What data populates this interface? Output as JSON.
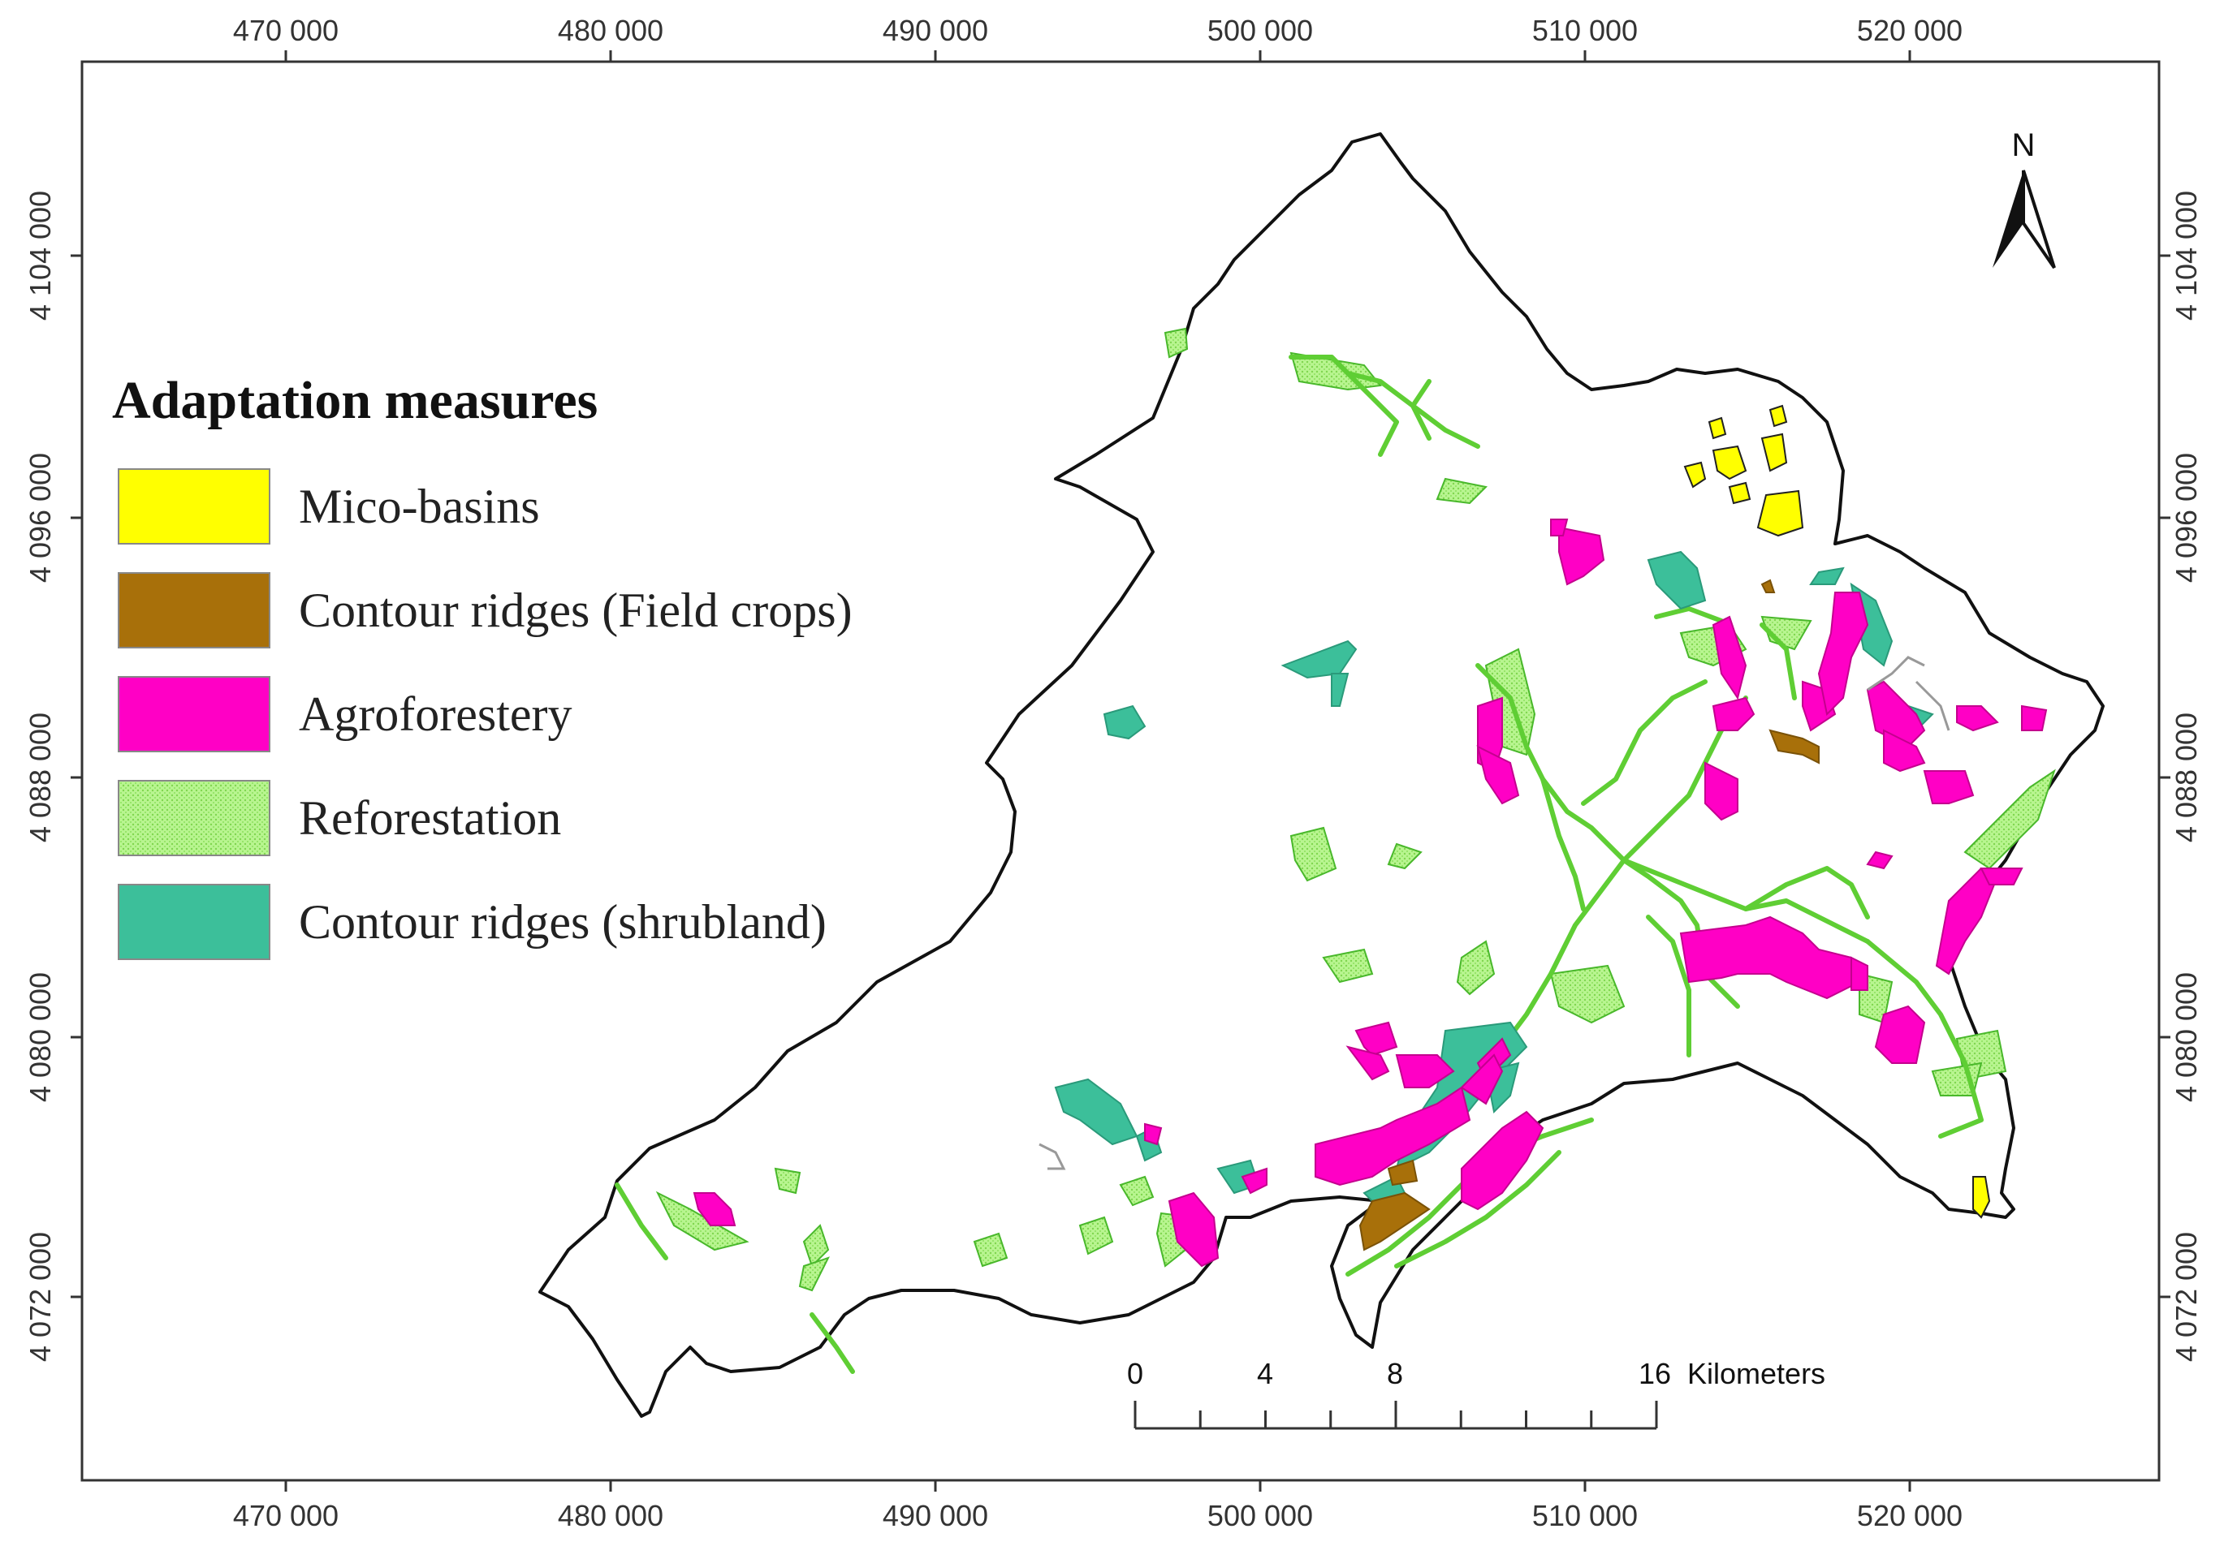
{
  "axes": {
    "x_ticks": [
      "470 000",
      "480 000",
      "490 000",
      "500 000",
      "510 000",
      "520 000"
    ],
    "y_ticks": [
      "4 104 000",
      "4 096 000",
      "4 088 000",
      "4 080 000",
      "4 072 000"
    ]
  },
  "legend": {
    "title": "Adaptation measures",
    "items": [
      {
        "label": "Mico-basins",
        "color": "#ffff00"
      },
      {
        "label": "Contour ridges (Field crops)",
        "color": "#a8700a"
      },
      {
        "label": "Agroforestery",
        "color": "#ff00c5"
      },
      {
        "label": "Reforestation",
        "color": "#a8f07a"
      },
      {
        "label": "Contour ridges (shrubland)",
        "color": "#3cbf9a"
      }
    ]
  },
  "north_arrow": {
    "label": "N"
  },
  "scale_bar": {
    "labels": [
      "0",
      "4",
      "8",
      "16"
    ],
    "unit": "Kilometers"
  },
  "colors": {
    "boundary": "#111111",
    "frame": "#333333",
    "gray_lines": "#999999"
  }
}
